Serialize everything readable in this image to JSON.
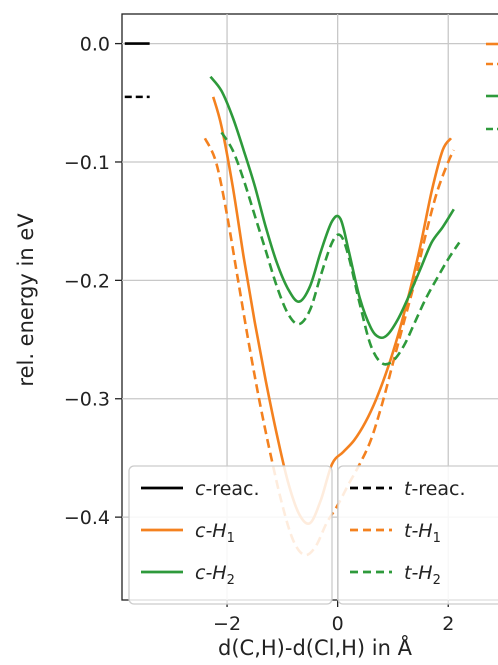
{
  "chart_data": {
    "type": "line",
    "xlabel": "d(C,H)-d(Cl,H) in Å",
    "ylabel": "rel. energy in eV",
    "xlim": [
      -3.9,
      2.9
    ],
    "ylim": [
      -0.47,
      0.025
    ],
    "xticks": [
      -2,
      0,
      2
    ],
    "xtick_labels": [
      "−2",
      "0",
      "2"
    ],
    "yticks": [
      0.0,
      -0.1,
      -0.2,
      -0.3,
      -0.4
    ],
    "ytick_labels": [
      "0.0",
      "−0.1",
      "−0.2",
      "−0.3",
      "−0.4"
    ],
    "grid": true,
    "legend_position": "bottom",
    "reference_lines": [
      {
        "name": "c-reac.",
        "y": 0.0,
        "x": [
          -3.85,
          -3.4
        ],
        "color": "#000000",
        "dash": "solid"
      },
      {
        "name": "t-reac.",
        "y": -0.045,
        "x": [
          -3.85,
          -3.4
        ],
        "color": "#000000",
        "dash": "dashed"
      }
    ],
    "series": [
      {
        "name": "c-H1",
        "color": "#f4811f",
        "dash": "solid",
        "x": [
          -2.25,
          -2.1,
          -1.9,
          -1.7,
          -1.5,
          -1.3,
          -1.1,
          -0.9,
          -0.7,
          -0.5,
          -0.3,
          -0.1,
          0.1,
          0.3,
          0.5,
          0.7,
          0.9,
          1.1,
          1.3,
          1.5,
          1.7,
          1.9,
          2.05
        ],
        "y": [
          -0.045,
          -0.07,
          -0.12,
          -0.18,
          -0.235,
          -0.285,
          -0.33,
          -0.37,
          -0.397,
          -0.405,
          -0.385,
          -0.355,
          -0.345,
          -0.335,
          -0.32,
          -0.3,
          -0.275,
          -0.245,
          -0.21,
          -0.17,
          -0.125,
          -0.09,
          -0.08
        ]
      },
      {
        "name": "t-H1",
        "color": "#f4811f",
        "dash": "dashed",
        "x": [
          -2.4,
          -2.2,
          -2.0,
          -1.8,
          -1.6,
          -1.4,
          -1.2,
          -1.0,
          -0.8,
          -0.6,
          -0.4,
          -0.2,
          0.0,
          0.2,
          0.4,
          0.6,
          0.8,
          1.0,
          1.2,
          1.4,
          1.6,
          1.8,
          2.0,
          2.1
        ],
        "y": [
          -0.08,
          -0.1,
          -0.145,
          -0.2,
          -0.255,
          -0.305,
          -0.35,
          -0.39,
          -0.42,
          -0.432,
          -0.425,
          -0.405,
          -0.39,
          -0.372,
          -0.355,
          -0.335,
          -0.305,
          -0.27,
          -0.235,
          -0.2,
          -0.16,
          -0.125,
          -0.1,
          -0.09
        ]
      },
      {
        "name": "c-H2",
        "color": "#2e9a3b",
        "dash": "solid",
        "x": [
          -2.3,
          -2.1,
          -1.9,
          -1.7,
          -1.5,
          -1.3,
          -1.1,
          -0.9,
          -0.7,
          -0.5,
          -0.3,
          -0.1,
          0.05,
          0.2,
          0.4,
          0.6,
          0.75,
          0.9,
          1.1,
          1.3,
          1.5,
          1.7,
          1.9,
          2.1
        ],
        "y": [
          -0.028,
          -0.04,
          -0.062,
          -0.09,
          -0.12,
          -0.155,
          -0.185,
          -0.207,
          -0.218,
          -0.205,
          -0.175,
          -0.15,
          -0.148,
          -0.175,
          -0.215,
          -0.24,
          -0.248,
          -0.246,
          -0.232,
          -0.212,
          -0.19,
          -0.168,
          -0.155,
          -0.14
        ]
      },
      {
        "name": "t-H2",
        "color": "#2e9a3b",
        "dash": "dashed",
        "x": [
          -2.1,
          -1.9,
          -1.7,
          -1.5,
          -1.3,
          -1.1,
          -0.9,
          -0.7,
          -0.5,
          -0.3,
          -0.1,
          0.05,
          0.2,
          0.4,
          0.6,
          0.8,
          1.0,
          1.2,
          1.4,
          1.6,
          1.8,
          2.0,
          2.2
        ],
        "y": [
          -0.075,
          -0.09,
          -0.115,
          -0.145,
          -0.175,
          -0.205,
          -0.228,
          -0.237,
          -0.225,
          -0.195,
          -0.168,
          -0.162,
          -0.18,
          -0.22,
          -0.255,
          -0.27,
          -0.268,
          -0.255,
          -0.235,
          -0.215,
          -0.198,
          -0.182,
          -0.168
        ]
      }
    ],
    "legend": {
      "entries": [
        {
          "prefix": "c",
          "suffix": "-reac.",
          "sub": "",
          "color": "#000000",
          "dash": "solid"
        },
        {
          "prefix": "t",
          "suffix": "-reac.",
          "sub": "",
          "color": "#000000",
          "dash": "dashed"
        },
        {
          "prefix": "c",
          "suffix": "-H",
          "sub": "1",
          "color": "#f4811f",
          "dash": "solid"
        },
        {
          "prefix": "t",
          "suffix": "-H",
          "sub": "1",
          "color": "#f4811f",
          "dash": "dashed"
        },
        {
          "prefix": "c",
          "suffix": "-H",
          "sub": "2",
          "color": "#2e9a3b",
          "dash": "solid"
        },
        {
          "prefix": "t",
          "suffix": "-H",
          "sub": "2",
          "color": "#2e9a3b",
          "dash": "dashed"
        }
      ]
    }
  }
}
